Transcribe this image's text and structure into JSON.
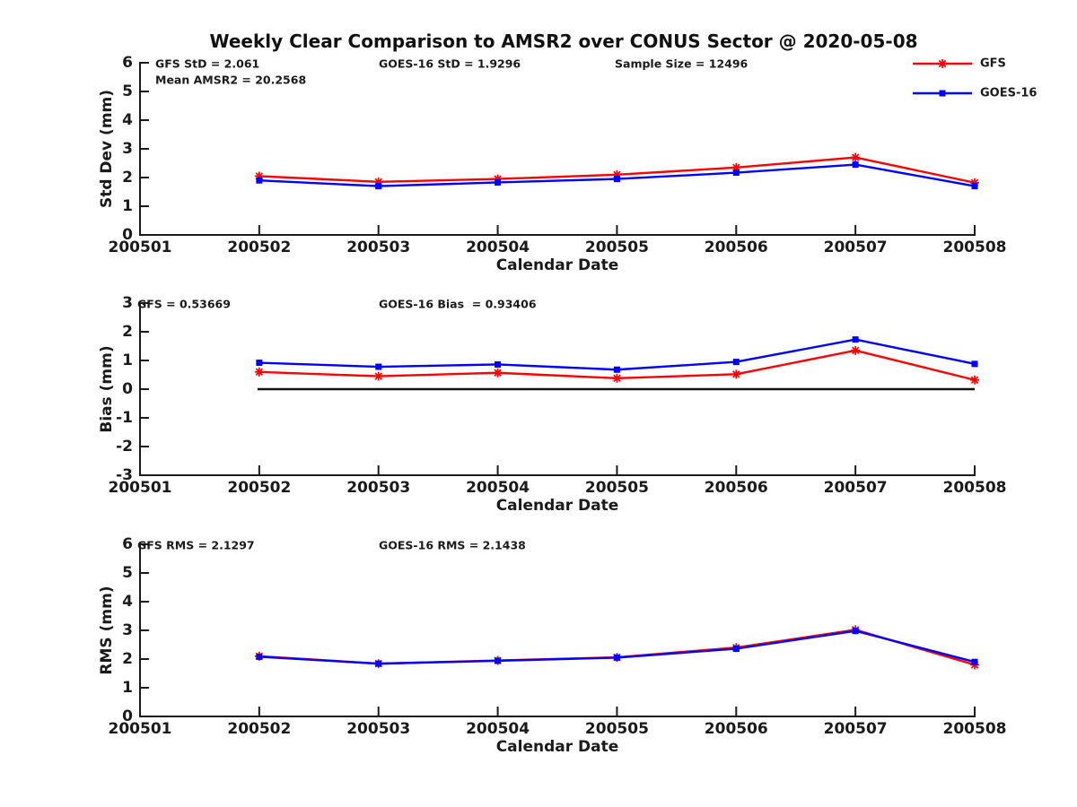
{
  "figure": {
    "title": "Weekly Clear Comparison to AMSR2 over CONUS Sector @ 2020-05-08",
    "background_color": "#ffffff",
    "text_color": "#1a1a1a"
  },
  "legend": {
    "position": "top-right-outside",
    "items": [
      {
        "label": "GFS",
        "color": "#ff0000",
        "marker": "asterisk"
      },
      {
        "label": "GOES-16",
        "color": "#0000ff",
        "marker": "square"
      }
    ]
  },
  "chart_data": [
    {
      "type": "line",
      "name": "std-dev",
      "ylabel": "Std Dev (mm)",
      "xlabel": "Calendar Date",
      "ylim": [
        0,
        6
      ],
      "yticks": [
        0,
        1,
        2,
        3,
        4,
        5,
        6
      ],
      "xticklabels": [
        "200501",
        "200502",
        "200503",
        "200504",
        "200505",
        "200506",
        "200507",
        "200508"
      ],
      "grid": false,
      "zero_line": false,
      "annotations": [
        {
          "text": "GFS StD = 2.061",
          "col": 0,
          "row": 0
        },
        {
          "text": "Mean AMSR2 = 20.2568",
          "col": 0,
          "row": 1
        },
        {
          "text": "GOES-16 StD = 1.9296",
          "col": 1,
          "row": 0
        },
        {
          "text": "Sample Size = 12496",
          "col": 2,
          "row": 0
        }
      ],
      "x": [
        "200502",
        "200503",
        "200504",
        "200505",
        "200506",
        "200507",
        "200508"
      ],
      "series": [
        {
          "name": "GFS",
          "color": "#ff0000",
          "marker": "asterisk",
          "values": [
            2.05,
            1.85,
            1.95,
            2.1,
            2.35,
            2.7,
            1.82
          ]
        },
        {
          "name": "GOES-16",
          "color": "#0000ff",
          "marker": "square",
          "values": [
            1.9,
            1.7,
            1.83,
            1.95,
            2.17,
            2.45,
            1.7
          ]
        }
      ]
    },
    {
      "type": "line",
      "name": "bias",
      "ylabel": "Bias (mm)",
      "xlabel": "Calendar Date",
      "ylim": [
        -3,
        3
      ],
      "yticks": [
        -3,
        -2,
        -1,
        0,
        1,
        2,
        3
      ],
      "xticklabels": [
        "200501",
        "200502",
        "200503",
        "200504",
        "200505",
        "200506",
        "200507",
        "200508"
      ],
      "grid": false,
      "zero_line": true,
      "annotations": [
        {
          "text": "GFS = 0.53669",
          "col": 0,
          "row": 0
        },
        {
          "text": "GOES-16 Bias  = 0.93406",
          "col": 1,
          "row": 0
        }
      ],
      "x": [
        "200502",
        "200503",
        "200504",
        "200505",
        "200506",
        "200507",
        "200508"
      ],
      "series": [
        {
          "name": "GFS",
          "color": "#ff0000",
          "marker": "asterisk",
          "values": [
            0.6,
            0.45,
            0.57,
            0.38,
            0.52,
            1.35,
            0.32
          ]
        },
        {
          "name": "GOES-16",
          "color": "#0000ff",
          "marker": "square",
          "values": [
            0.92,
            0.78,
            0.86,
            0.68,
            0.95,
            1.73,
            0.88
          ]
        }
      ]
    },
    {
      "type": "line",
      "name": "rms",
      "ylabel": "RMS (mm)",
      "xlabel": "Calendar Date",
      "ylim": [
        0,
        6
      ],
      "yticks": [
        0,
        1,
        2,
        3,
        4,
        5,
        6
      ],
      "xticklabels": [
        "200501",
        "200502",
        "200503",
        "200504",
        "200505",
        "200506",
        "200507",
        "200508"
      ],
      "grid": false,
      "zero_line": false,
      "annotations": [
        {
          "text": "GFS RMS = 2.1297",
          "col": 0,
          "row": 0
        },
        {
          "text": "GOES-16 RMS = 2.1438",
          "col": 1,
          "row": 0
        }
      ],
      "x": [
        "200502",
        "200503",
        "200504",
        "200505",
        "200506",
        "200507",
        "200508"
      ],
      "series": [
        {
          "name": "GFS",
          "color": "#ff0000",
          "marker": "asterisk",
          "values": [
            2.1,
            1.84,
            1.95,
            2.06,
            2.4,
            3.02,
            1.8
          ]
        },
        {
          "name": "GOES-16",
          "color": "#0000ff",
          "marker": "square",
          "values": [
            2.08,
            1.84,
            1.94,
            2.05,
            2.36,
            2.98,
            1.9
          ]
        }
      ]
    }
  ]
}
